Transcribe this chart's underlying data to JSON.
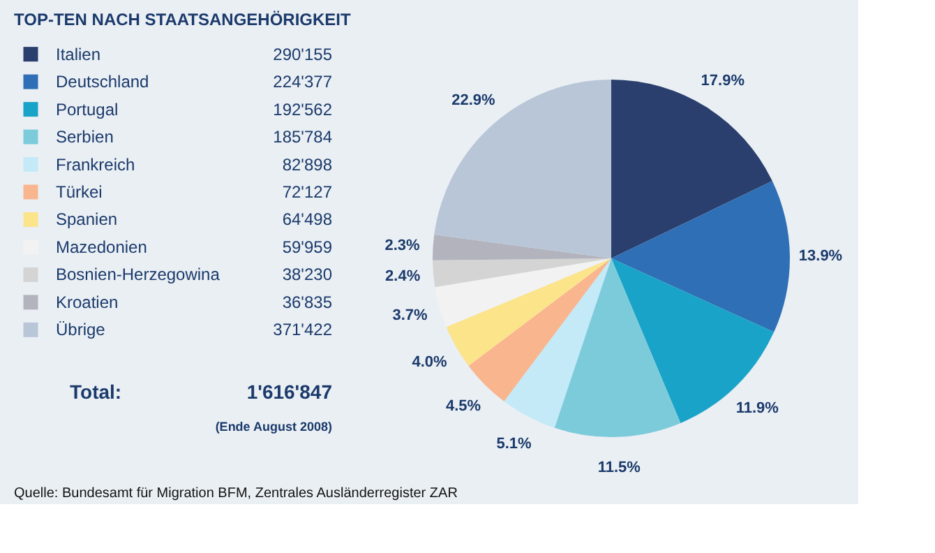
{
  "chart_data": {
    "type": "pie",
    "title": "TOP-TEN NACH STAATSANGEHÖRIGKEIT",
    "categories": [
      "Italien",
      "Deutschland",
      "Portugal",
      "Serbien",
      "Frankreich",
      "Türkei",
      "Spanien",
      "Mazedonien",
      "Bosnien-Herzegowina",
      "Kroatien",
      "Übrige"
    ],
    "values": [
      17.9,
      13.9,
      11.9,
      11.5,
      5.1,
      4.5,
      4.0,
      3.7,
      2.4,
      2.3,
      22.9
    ],
    "value_labels": [
      "17.9%",
      "13.9%",
      "11.9%",
      "11.5%",
      "5.1%",
      "4.5%",
      "4.0%",
      "3.7%",
      "2.4%",
      "2.3%",
      "22.9%"
    ],
    "colors": [
      "#2b3f6e",
      "#2f6fb5",
      "#1aa3c8",
      "#7ccbdb",
      "#c4e9f7",
      "#f9b58e",
      "#fbe48a",
      "#f2f2f2",
      "#d4d4d4",
      "#b3b3bd",
      "#b8c6d8"
    ],
    "legend": "left",
    "annotations": [
      "290'155",
      "224'377",
      "192'562",
      "185'784",
      "82'898",
      "72'127",
      "64'498",
      "59'959",
      "38'230",
      "36'835",
      "371'422",
      "Total:",
      "1'616'847",
      "(Ende August 2008)",
      "Quelle: Bundesamt für Migration BFM, Zentrales Ausländerregister ZAR"
    ]
  }
}
